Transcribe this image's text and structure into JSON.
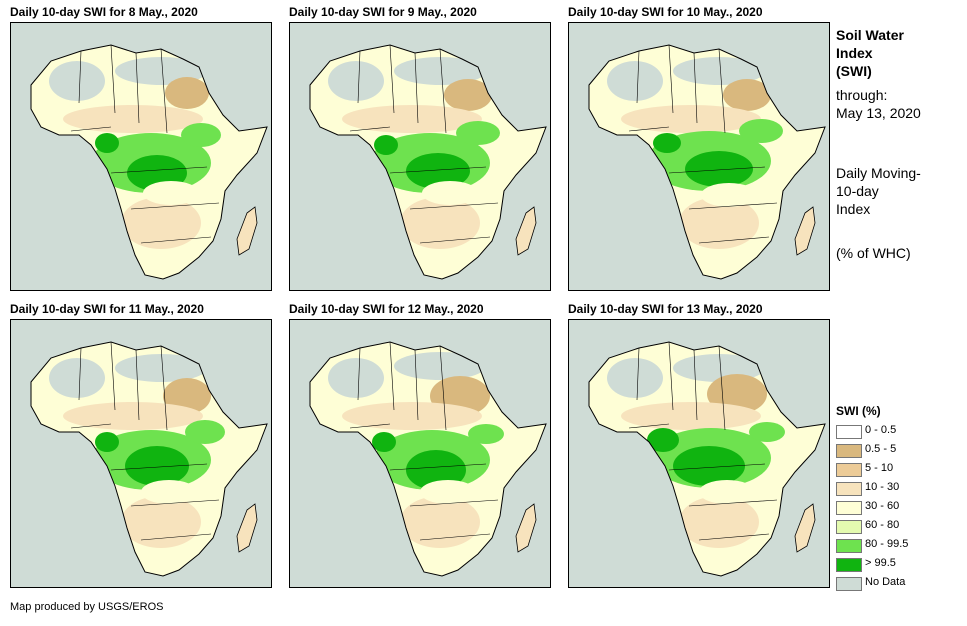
{
  "panels": [
    {
      "title": "Daily 10-day SWI for 8 May., 2020"
    },
    {
      "title": "Daily 10-day SWI for 9 May., 2020"
    },
    {
      "title": "Daily 10-day SWI for 10 May., 2020"
    },
    {
      "title": "Daily 10-day SWI for 11 May., 2020"
    },
    {
      "title": "Daily 10-day SWI for 12 May., 2020"
    },
    {
      "title": "Daily 10-day SWI for 13 May., 2020"
    }
  ],
  "side_info": {
    "title_line1": "Soil Water",
    "title_line2": "Index",
    "title_line3": "(SWI)",
    "through_label": "through:",
    "through_date": "May 13, 2020",
    "desc_line1": "Daily Moving-",
    "desc_line2": "10-day",
    "desc_line3": "Index",
    "units": "(% of WHC)"
  },
  "legend": {
    "title": "SWI (%)",
    "items": [
      {
        "label": "0 - 0.5",
        "color": "#ffffff"
      },
      {
        "label": "0.5 - 5",
        "color": "#d9b87e"
      },
      {
        "label": "5 - 10",
        "color": "#eccb97"
      },
      {
        "label": "10 - 30",
        "color": "#f7e3bd"
      },
      {
        "label": "30 - 60",
        "color": "#fefed6"
      },
      {
        "label": "60 - 80",
        "color": "#e4fbb0"
      },
      {
        "label": "80 - 99.5",
        "color": "#6ee24f"
      },
      {
        "label": "> 99.5",
        "color": "#10b410"
      },
      {
        "label": "No Data",
        "color": "#cfdcd6"
      }
    ]
  },
  "credit": "Map produced by USGS/EROS"
}
